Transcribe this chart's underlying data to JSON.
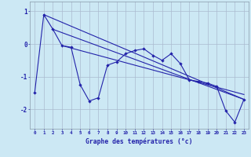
{
  "xlabel": "Graphe des températures (°c)",
  "x_ticks": [
    0,
    1,
    2,
    3,
    4,
    5,
    6,
    7,
    8,
    9,
    10,
    11,
    12,
    13,
    14,
    15,
    16,
    17,
    18,
    19,
    20,
    21,
    22,
    23
  ],
  "ylim": [
    -2.6,
    1.3
  ],
  "xlim": [
    -0.5,
    23.5
  ],
  "background_color": "#cce8f4",
  "line_color": "#2222aa",
  "grid_color": "#aabbd0",
  "main_line": [
    0,
    -1.5,
    1,
    0.9,
    2,
    0.45,
    3,
    -0.05,
    4,
    -0.1,
    5,
    -1.25,
    6,
    -1.75,
    7,
    -1.65,
    8,
    -0.65,
    9,
    -0.55,
    10,
    -0.3,
    11,
    -0.2,
    12,
    -0.15,
    13,
    -0.35,
    14,
    -0.5,
    15,
    -0.3,
    16,
    -0.6,
    17,
    -1.1,
    18,
    -1.15,
    19,
    -1.2,
    20,
    -1.3,
    21,
    -2.05,
    22,
    -2.4,
    23,
    -1.7
  ],
  "trend_lines": [
    [
      [
        1,
        0.9
      ],
      [
        23,
        -1.7
      ]
    ],
    [
      [
        2,
        0.45
      ],
      [
        23,
        -1.7
      ]
    ],
    [
      [
        3,
        -0.05
      ],
      [
        23,
        -1.55
      ]
    ]
  ],
  "yticks": [
    -2,
    -1,
    0,
    1
  ],
  "ytick_labels": [
    "-2",
    "-1",
    "0",
    "1"
  ]
}
